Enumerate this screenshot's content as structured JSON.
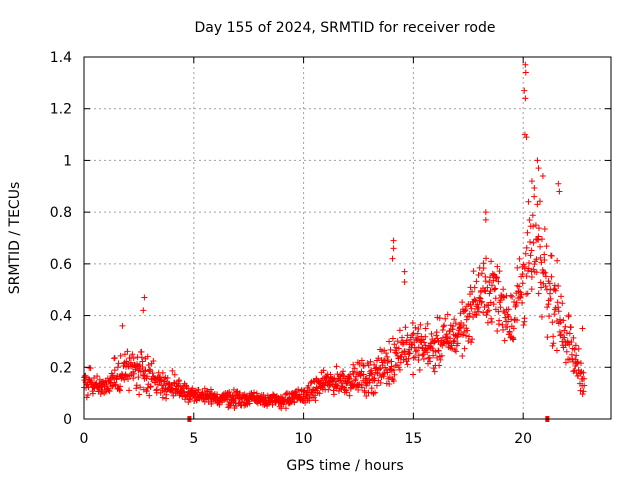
{
  "chart_data": {
    "type": "scatter",
    "title": "Day 155 of 2024, SRMTID for receiver rode",
    "xlabel": "GPS time / hours",
    "ylabel": "SRMTID / TECUs",
    "xlim": [
      0,
      24
    ],
    "ylim": [
      0,
      1.4
    ],
    "x_ticks": [
      0,
      5,
      10,
      15,
      20
    ],
    "x_tick_labels": [
      "0",
      "5",
      "10",
      "15",
      "20"
    ],
    "y_ticks": [
      0,
      0.2,
      0.4,
      0.6,
      0.8,
      1.0,
      1.2,
      1.4
    ],
    "y_tick_labels": [
      "0",
      "0.2",
      "0.4",
      "0.6",
      "0.8",
      "1",
      "1.2",
      "1.4"
    ],
    "grid": true,
    "marker": "plus",
    "color": "#ff0000",
    "axis_markers_x": [
      4.8,
      21.1
    ],
    "envelope": [
      {
        "x": 0.0,
        "y": 0.14,
        "spread": 0.05
      },
      {
        "x": 0.5,
        "y": 0.13,
        "spread": 0.05
      },
      {
        "x": 1.0,
        "y": 0.12,
        "spread": 0.04
      },
      {
        "x": 1.5,
        "y": 0.17,
        "spread": 0.07
      },
      {
        "x": 2.0,
        "y": 0.19,
        "spread": 0.07
      },
      {
        "x": 2.5,
        "y": 0.2,
        "spread": 0.09
      },
      {
        "x": 3.0,
        "y": 0.17,
        "spread": 0.06
      },
      {
        "x": 3.5,
        "y": 0.14,
        "spread": 0.05
      },
      {
        "x": 4.0,
        "y": 0.12,
        "spread": 0.05
      },
      {
        "x": 4.5,
        "y": 0.11,
        "spread": 0.04
      },
      {
        "x": 5.0,
        "y": 0.09,
        "spread": 0.03
      },
      {
        "x": 6.0,
        "y": 0.08,
        "spread": 0.03
      },
      {
        "x": 7.0,
        "y": 0.08,
        "spread": 0.03
      },
      {
        "x": 8.0,
        "y": 0.08,
        "spread": 0.025
      },
      {
        "x": 9.0,
        "y": 0.07,
        "spread": 0.025
      },
      {
        "x": 10.0,
        "y": 0.09,
        "spread": 0.03
      },
      {
        "x": 11.0,
        "y": 0.14,
        "spread": 0.04
      },
      {
        "x": 12.0,
        "y": 0.15,
        "spread": 0.05
      },
      {
        "x": 13.0,
        "y": 0.16,
        "spread": 0.06
      },
      {
        "x": 14.0,
        "y": 0.22,
        "spread": 0.08
      },
      {
        "x": 14.5,
        "y": 0.28,
        "spread": 0.08
      },
      {
        "x": 15.0,
        "y": 0.28,
        "spread": 0.08
      },
      {
        "x": 16.0,
        "y": 0.28,
        "spread": 0.08
      },
      {
        "x": 17.0,
        "y": 0.33,
        "spread": 0.09
      },
      {
        "x": 17.5,
        "y": 0.4,
        "spread": 0.1
      },
      {
        "x": 18.0,
        "y": 0.48,
        "spread": 0.11
      },
      {
        "x": 18.5,
        "y": 0.5,
        "spread": 0.12
      },
      {
        "x": 19.0,
        "y": 0.45,
        "spread": 0.12
      },
      {
        "x": 19.5,
        "y": 0.38,
        "spread": 0.1
      },
      {
        "x": 20.0,
        "y": 0.55,
        "spread": 0.18
      },
      {
        "x": 20.5,
        "y": 0.65,
        "spread": 0.2
      },
      {
        "x": 21.0,
        "y": 0.55,
        "spread": 0.18
      },
      {
        "x": 21.5,
        "y": 0.45,
        "spread": 0.15
      },
      {
        "x": 22.0,
        "y": 0.32,
        "spread": 0.1
      },
      {
        "x": 22.5,
        "y": 0.2,
        "spread": 0.07
      },
      {
        "x": 22.8,
        "y": 0.15,
        "spread": 0.05
      }
    ],
    "spikes": [
      {
        "x": 2.75,
        "y": 0.47
      },
      {
        "x": 2.7,
        "y": 0.42
      },
      {
        "x": 1.75,
        "y": 0.36
      },
      {
        "x": 14.1,
        "y": 0.69
      },
      {
        "x": 14.1,
        "y": 0.66
      },
      {
        "x": 14.05,
        "y": 0.62
      },
      {
        "x": 14.6,
        "y": 0.57
      },
      {
        "x": 14.6,
        "y": 0.53
      },
      {
        "x": 18.3,
        "y": 0.8
      },
      {
        "x": 18.3,
        "y": 0.77
      },
      {
        "x": 20.1,
        "y": 1.37
      },
      {
        "x": 20.12,
        "y": 1.34
      },
      {
        "x": 20.05,
        "y": 1.27
      },
      {
        "x": 20.1,
        "y": 1.24
      },
      {
        "x": 20.08,
        "y": 1.1
      },
      {
        "x": 20.15,
        "y": 1.09
      },
      {
        "x": 20.65,
        "y": 1.0
      },
      {
        "x": 20.7,
        "y": 0.97
      },
      {
        "x": 20.9,
        "y": 0.94
      },
      {
        "x": 20.4,
        "y": 0.92
      },
      {
        "x": 21.6,
        "y": 0.91
      },
      {
        "x": 21.65,
        "y": 0.88
      },
      {
        "x": 20.5,
        "y": 0.86
      },
      {
        "x": 22.7,
        "y": 0.35
      }
    ]
  }
}
